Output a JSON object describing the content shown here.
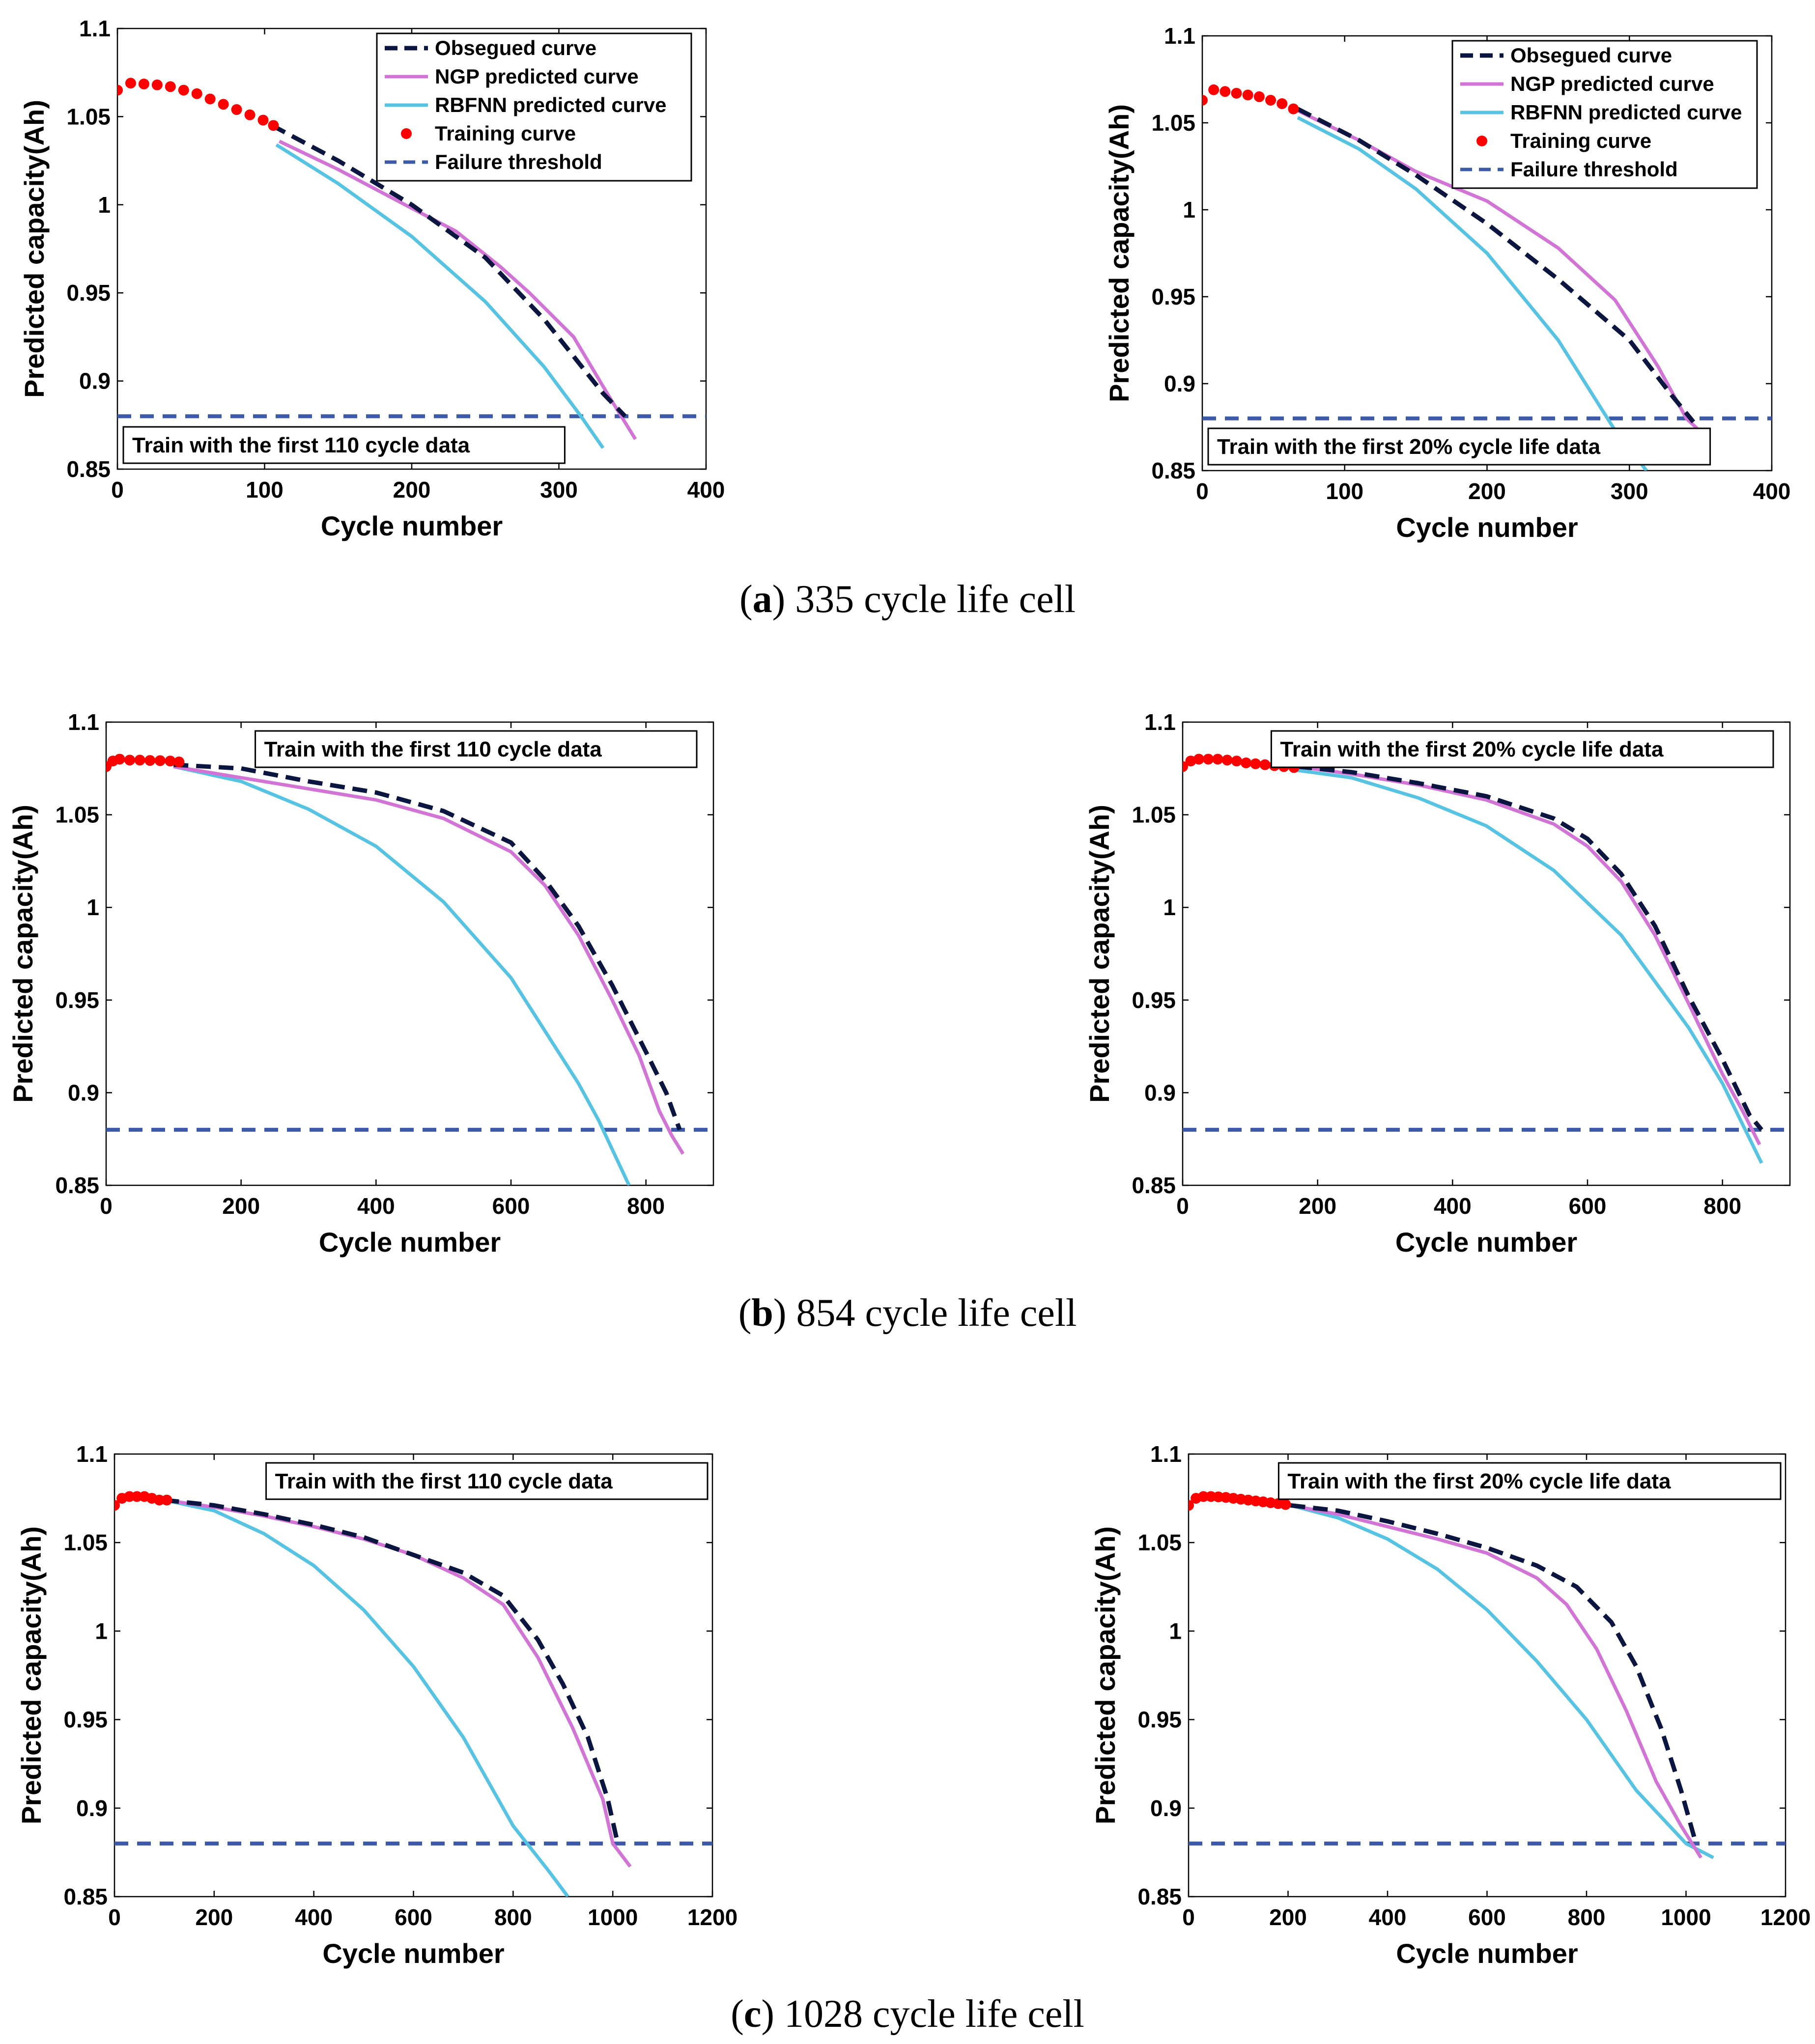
{
  "captions": [
    {
      "letter": "a",
      "text": " 335 cycle life cell"
    },
    {
      "letter": "b",
      "text": " 854 cycle life cell"
    },
    {
      "letter": "c",
      "text": " 1028 cycle life cell"
    }
  ],
  "legend_entries": [
    "Obsegued curve",
    "NGP predicted curve",
    "RBFNN predicted curve",
    "Training curve",
    "Failure threshold"
  ],
  "colors": {
    "observed": "#0b1640",
    "ngp": "#d273d6",
    "rbfnn": "#56c3e3",
    "training": "#ff0000",
    "threshold": "#3c5aa8"
  },
  "chart_data": [
    {
      "id": "a-left",
      "type": "line",
      "xlabel": "Cycle number",
      "ylabel": "Predicted capacity(Ah)",
      "xlim": [
        0,
        400
      ],
      "ylim": [
        0.85,
        1.1
      ],
      "xticks": [
        0,
        100,
        200,
        300,
        400
      ],
      "yticks": [
        0.85,
        0.9,
        0.95,
        1,
        1.05,
        1.1
      ],
      "ytick_labels": [
        "0.85",
        "0.9",
        "0.95",
        "1",
        "1.05",
        "1.1"
      ],
      "annotation": "Train with the first 110 cycle data",
      "annotation_pos": "bottom-left",
      "legend_pos": "top-right",
      "failure_threshold": 0.88,
      "series": [
        {
          "name": "Obsegued curve",
          "key": "observed",
          "x": [
            105,
            150,
            200,
            250,
            290,
            330,
            345
          ],
          "y": [
            1.045,
            1.025,
            1.0,
            0.97,
            0.935,
            0.893,
            0.88
          ]
        },
        {
          "name": "NGP predicted curve",
          "key": "ngp",
          "x": [
            110,
            150,
            200,
            230,
            260,
            280,
            310,
            335,
            352
          ],
          "y": [
            1.036,
            1.02,
            0.998,
            0.985,
            0.965,
            0.95,
            0.925,
            0.89,
            0.867
          ]
        },
        {
          "name": "RBFNN predicted curve",
          "key": "rbfnn",
          "x": [
            108,
            150,
            200,
            250,
            290,
            315,
            330
          ],
          "y": [
            1.034,
            1.012,
            0.982,
            0.945,
            0.908,
            0.88,
            0.862
          ]
        },
        {
          "name": "Training curve",
          "key": "training",
          "x": [
            0,
            9,
            18,
            27,
            36,
            45,
            54,
            63,
            72,
            81,
            90,
            99,
            106
          ],
          "y": [
            1.065,
            1.069,
            1.0685,
            1.068,
            1.067,
            1.065,
            1.063,
            1.06,
            1.057,
            1.054,
            1.051,
            1.048,
            1.045
          ]
        }
      ]
    },
    {
      "id": "a-right",
      "type": "line",
      "xlabel": "Cycle number",
      "ylabel": "Predicted capacity(Ah)",
      "xlim": [
        0,
        400
      ],
      "ylim": [
        0.85,
        1.1
      ],
      "xticks": [
        0,
        100,
        200,
        300,
        400
      ],
      "yticks": [
        0.85,
        0.9,
        0.95,
        1,
        1.05,
        1.1
      ],
      "ytick_labels": [
        "0.85",
        "0.9",
        "0.95",
        "1",
        "1.05",
        "1.1"
      ],
      "annotation": "Train with the first 20% cycle life data",
      "annotation_pos": "bottom-left",
      "legend_pos": "top-right",
      "failure_threshold": 0.88,
      "series": [
        {
          "name": "Obsegued curve",
          "key": "observed",
          "x": [
            67,
            110,
            150,
            200,
            250,
            300,
            330,
            345
          ],
          "y": [
            1.058,
            1.04,
            1.02,
            0.992,
            0.96,
            0.925,
            0.893,
            0.878
          ]
        },
        {
          "name": "NGP predicted curve",
          "key": "ngp",
          "x": [
            67,
            110,
            150,
            200,
            250,
            290,
            320,
            340,
            353
          ],
          "y": [
            1.057,
            1.04,
            1.022,
            1.005,
            0.978,
            0.948,
            0.91,
            0.88,
            0.87
          ]
        },
        {
          "name": "RBFNN predicted curve",
          "key": "rbfnn",
          "x": [
            67,
            110,
            150,
            200,
            250,
            290,
            312
          ],
          "y": [
            1.053,
            1.035,
            1.012,
            0.975,
            0.925,
            0.873,
            0.85
          ]
        },
        {
          "name": "Training curve",
          "key": "training",
          "x": [
            0,
            8,
            16,
            24,
            32,
            40,
            48,
            56,
            64
          ],
          "y": [
            1.063,
            1.069,
            1.068,
            1.067,
            1.066,
            1.065,
            1.063,
            1.061,
            1.058
          ]
        }
      ]
    },
    {
      "id": "b-left",
      "type": "line",
      "xlabel": "Cycle number",
      "ylabel": "Predicted capacity(Ah)",
      "xlim": [
        0,
        900
      ],
      "ylim": [
        0.85,
        1.1
      ],
      "xticks": [
        0,
        200,
        400,
        600,
        800
      ],
      "yticks": [
        0.85,
        0.9,
        0.95,
        1,
        1.05,
        1.1
      ],
      "ytick_labels": [
        "0.85",
        "0.9",
        "0.95",
        "1",
        "1.05",
        "1.1"
      ],
      "annotation": "Train with the first 110 cycle data",
      "annotation_pos": "top-right",
      "failure_threshold": 0.88,
      "series": [
        {
          "name": "Obsegued curve",
          "key": "observed",
          "x": [
            100,
            200,
            300,
            400,
            500,
            600,
            650,
            700,
            750,
            800,
            830,
            850
          ],
          "y": [
            1.077,
            1.075,
            1.068,
            1.062,
            1.052,
            1.035,
            1.015,
            0.99,
            0.958,
            0.922,
            0.9,
            0.88
          ]
        },
        {
          "name": "NGP predicted curve",
          "key": "ngp",
          "x": [
            100,
            200,
            300,
            400,
            500,
            600,
            650,
            700,
            750,
            790,
            820,
            838,
            855
          ],
          "y": [
            1.076,
            1.07,
            1.064,
            1.058,
            1.048,
            1.03,
            1.012,
            0.985,
            0.95,
            0.92,
            0.89,
            0.877,
            0.867
          ]
        },
        {
          "name": "RBFNN predicted curve",
          "key": "rbfnn",
          "x": [
            100,
            200,
            300,
            400,
            500,
            600,
            700,
            730,
            775
          ],
          "y": [
            1.076,
            1.068,
            1.053,
            1.033,
            1.003,
            0.962,
            0.905,
            0.885,
            0.85
          ]
        },
        {
          "name": "Training curve",
          "key": "training",
          "x": [
            0,
            10,
            20,
            35,
            50,
            65,
            80,
            95,
            108
          ],
          "y": [
            1.076,
            1.079,
            1.08,
            1.0795,
            1.0795,
            1.0793,
            1.0792,
            1.079,
            1.0785
          ]
        }
      ]
    },
    {
      "id": "b-right",
      "type": "line",
      "xlabel": "Cycle number",
      "ylabel": "Predicted capacity(Ah)",
      "xlim": [
        0,
        900
      ],
      "ylim": [
        0.85,
        1.1
      ],
      "xticks": [
        0,
        200,
        400,
        600,
        800
      ],
      "yticks": [
        0.85,
        0.9,
        0.95,
        1,
        1.05,
        1.1
      ],
      "ytick_labels": [
        "0.85",
        "0.9",
        "0.95",
        "1",
        "1.05",
        "1.1"
      ],
      "annotation": "Train with the first 20% cycle life data",
      "annotation_pos": "top-right",
      "failure_threshold": 0.88,
      "series": [
        {
          "name": "Obsegued curve",
          "key": "observed",
          "x": [
            170,
            250,
            350,
            450,
            550,
            600,
            650,
            700,
            750,
            800,
            840,
            858
          ],
          "y": [
            1.076,
            1.073,
            1.067,
            1.06,
            1.048,
            1.037,
            1.018,
            0.99,
            0.952,
            0.918,
            0.888,
            0.88
          ]
        },
        {
          "name": "NGP predicted curve",
          "key": "ngp",
          "x": [
            170,
            250,
            350,
            450,
            550,
            600,
            650,
            700,
            750,
            800,
            830,
            855
          ],
          "y": [
            1.076,
            1.072,
            1.066,
            1.058,
            1.045,
            1.033,
            1.014,
            0.985,
            0.948,
            0.91,
            0.89,
            0.872
          ]
        },
        {
          "name": "RBFNN predicted curve",
          "key": "rbfnn",
          "x": [
            170,
            250,
            350,
            450,
            550,
            650,
            750,
            800,
            858
          ],
          "y": [
            1.074,
            1.07,
            1.059,
            1.044,
            1.02,
            0.985,
            0.935,
            0.905,
            0.862
          ]
        },
        {
          "name": "Training curve",
          "key": "training",
          "x": [
            0,
            12,
            24,
            38,
            52,
            66,
            80,
            94,
            108,
            122,
            136,
            150,
            165
          ],
          "y": [
            1.076,
            1.079,
            1.08,
            1.08,
            1.08,
            1.0795,
            1.079,
            1.078,
            1.0775,
            1.077,
            1.0765,
            1.076,
            1.0755
          ]
        }
      ]
    },
    {
      "id": "c-left",
      "type": "line",
      "xlabel": "Cycle number",
      "ylabel": "Predicted capacity(Ah)",
      "xlim": [
        0,
        1200
      ],
      "ylim": [
        0.85,
        1.1
      ],
      "xticks": [
        0,
        200,
        400,
        600,
        800,
        1000,
        1200
      ],
      "yticks": [
        0.85,
        0.9,
        0.95,
        1,
        1.05,
        1.1
      ],
      "ytick_labels": [
        "0.85",
        "0.9",
        "0.95",
        "1",
        "1.05",
        "1.1"
      ],
      "annotation": "Train with the first 110 cycle data",
      "annotation_pos": "top-right",
      "failure_threshold": 0.88,
      "series": [
        {
          "name": "Obsegued curve",
          "key": "observed",
          "x": [
            100,
            200,
            300,
            400,
            500,
            600,
            700,
            780,
            850,
            900,
            950,
            990,
            1010
          ],
          "y": [
            1.074,
            1.071,
            1.066,
            1.06,
            1.053,
            1.043,
            1.033,
            1.02,
            0.995,
            0.97,
            0.94,
            0.905,
            0.88
          ]
        },
        {
          "name": "NGP predicted curve",
          "key": "ngp",
          "x": [
            100,
            200,
            300,
            400,
            500,
            600,
            700,
            780,
            850,
            920,
            980,
            1000,
            1035
          ],
          "y": [
            1.074,
            1.07,
            1.065,
            1.059,
            1.052,
            1.043,
            1.03,
            1.015,
            0.985,
            0.945,
            0.905,
            0.88,
            0.867
          ]
        },
        {
          "name": "RBFNN predicted curve",
          "key": "rbfnn",
          "x": [
            100,
            200,
            300,
            400,
            500,
            600,
            700,
            800,
            870,
            910
          ],
          "y": [
            1.074,
            1.068,
            1.055,
            1.037,
            1.012,
            0.98,
            0.94,
            0.89,
            0.865,
            0.85
          ]
        },
        {
          "name": "Training curve",
          "key": "training",
          "x": [
            0,
            15,
            30,
            45,
            60,
            75,
            90,
            105
          ],
          "y": [
            1.071,
            1.075,
            1.076,
            1.076,
            1.076,
            1.075,
            1.074,
            1.074
          ]
        }
      ]
    },
    {
      "id": "c-right",
      "type": "line",
      "xlabel": "Cycle number",
      "ylabel": "Predicted capacity(Ah)",
      "xlim": [
        0,
        1200
      ],
      "ylim": [
        0.85,
        1.1
      ],
      "xticks": [
        0,
        200,
        400,
        600,
        800,
        1000,
        1200
      ],
      "yticks": [
        0.85,
        0.9,
        0.95,
        1,
        1.05,
        1.1
      ],
      "ytick_labels": [
        "0.85",
        "0.9",
        "0.95",
        "1",
        "1.05",
        "1.1"
      ],
      "annotation": "Train with the first 20% cycle life data",
      "annotation_pos": "top-right",
      "failure_threshold": 0.88,
      "series": [
        {
          "name": "Obsegued curve",
          "key": "observed",
          "x": [
            205,
            300,
            400,
            500,
            600,
            700,
            780,
            850,
            900,
            950,
            990,
            1020
          ],
          "y": [
            1.071,
            1.068,
            1.062,
            1.055,
            1.047,
            1.037,
            1.025,
            1.005,
            0.98,
            0.945,
            0.91,
            0.88
          ]
        },
        {
          "name": "NGP predicted curve",
          "key": "ngp",
          "x": [
            205,
            300,
            400,
            500,
            600,
            700,
            760,
            820,
            880,
            940,
            990,
            1030
          ],
          "y": [
            1.071,
            1.066,
            1.059,
            1.052,
            1.044,
            1.03,
            1.015,
            0.99,
            0.955,
            0.915,
            0.89,
            0.872
          ]
        },
        {
          "name": "RBFNN predicted curve",
          "key": "rbfnn",
          "x": [
            205,
            300,
            400,
            500,
            600,
            700,
            800,
            900,
            1000,
            1055
          ],
          "y": [
            1.071,
            1.064,
            1.052,
            1.035,
            1.012,
            0.983,
            0.95,
            0.91,
            0.88,
            0.872
          ]
        },
        {
          "name": "Training curve",
          "key": "training",
          "x": [
            0,
            15,
            30,
            45,
            60,
            75,
            90,
            105,
            120,
            135,
            150,
            165,
            180,
            195
          ],
          "y": [
            1.071,
            1.075,
            1.076,
            1.076,
            1.0758,
            1.0755,
            1.075,
            1.0745,
            1.074,
            1.0735,
            1.073,
            1.0725,
            1.072,
            1.0715
          ]
        }
      ]
    }
  ]
}
